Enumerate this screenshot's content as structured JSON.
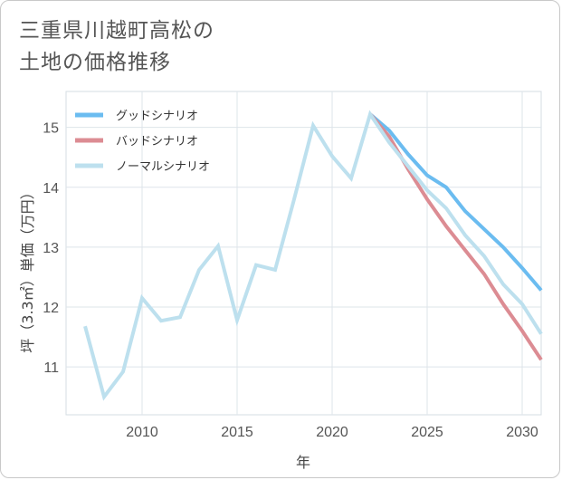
{
  "title": "三重県川越町高松の\n土地の価格推移",
  "chart_data": {
    "type": "line",
    "xlabel": "年",
    "ylabel": "坪（3.3㎡）単価（万円）",
    "xlim": [
      2006,
      2031
    ],
    "ylim": [
      10.2,
      15.6
    ],
    "x_ticks": [
      2010,
      2015,
      2020,
      2025,
      2030
    ],
    "y_ticks": [
      11,
      12,
      13,
      14,
      15
    ],
    "legend_position": "top-left",
    "series": [
      {
        "name": "グッドシナリオ",
        "color": "#6bbcf0",
        "x": [
          2022,
          2023,
          2024,
          2025,
          2026,
          2027,
          2028,
          2029,
          2030,
          2031
        ],
        "values": [
          15.22,
          14.95,
          14.55,
          14.2,
          14.0,
          13.6,
          13.3,
          13.0,
          12.65,
          12.28
        ]
      },
      {
        "name": "バッドシナリオ",
        "color": "#dc8c93",
        "x": [
          2022,
          2023,
          2024,
          2025,
          2026,
          2027,
          2028,
          2029,
          2030,
          2031
        ],
        "values": [
          15.22,
          14.85,
          14.3,
          13.8,
          13.35,
          12.95,
          12.55,
          12.05,
          11.6,
          11.12
        ]
      },
      {
        "name": "ノーマルシナリオ",
        "color": "#bde0ee",
        "x": [
          2007,
          2008,
          2009,
          2010,
          2011,
          2012,
          2013,
          2014,
          2015,
          2016,
          2017,
          2018,
          2019,
          2020,
          2021,
          2022,
          2023,
          2024,
          2025,
          2026,
          2027,
          2028,
          2029,
          2030,
          2031
        ],
        "values": [
          11.68,
          10.5,
          10.92,
          12.15,
          11.77,
          11.83,
          12.62,
          13.02,
          11.78,
          12.7,
          12.62,
          13.8,
          15.03,
          14.52,
          14.15,
          15.22,
          14.75,
          14.35,
          13.95,
          13.65,
          13.2,
          12.85,
          12.38,
          12.05,
          11.55
        ]
      }
    ]
  }
}
